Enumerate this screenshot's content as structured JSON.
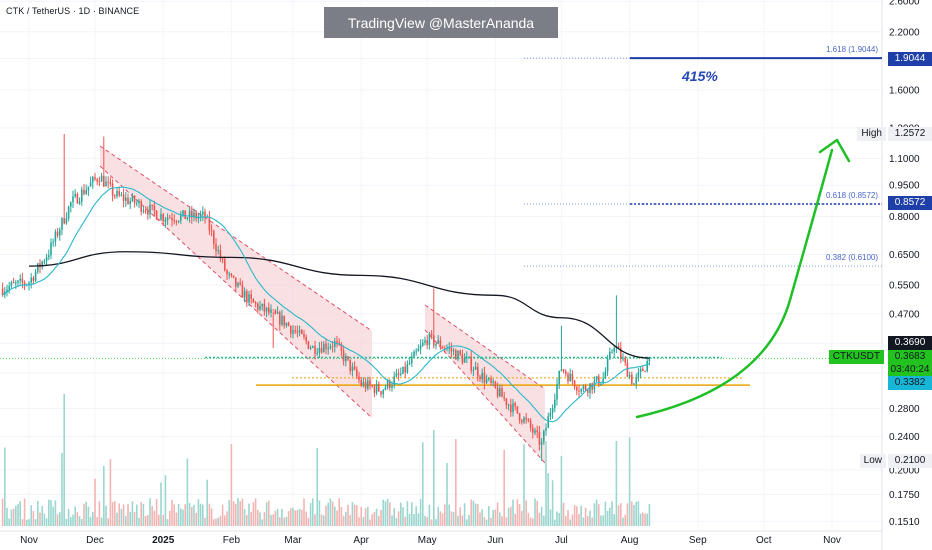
{
  "header": {
    "title": "CTK / TetherUS · 1D · BINANCE",
    "watermark": "TradingView @MasterAnanda"
  },
  "annotations": {
    "target_percent": "415%",
    "fib_1618": "1.618 (1.9044)",
    "fib_0618": "0.618 (0.8572)",
    "fib_0382": "0.382 (0.6100)",
    "high_label": "High",
    "low_label": "Low",
    "symbol_label": "CTKUSDT"
  },
  "price_tags": {
    "fib_1618": "1.9044",
    "high": "1.2572",
    "fib_0618": "0.8572",
    "ma200": "0.3690",
    "last": "0.3683",
    "countdown": "03:40:24",
    "ma20": "0.3382",
    "low": "0.2100"
  },
  "colors": {
    "up": "#26a69a",
    "down": "#ef5350",
    "channel_fill": "#f7d3d6",
    "channel_line": "#e0506a",
    "ma_long": "#131722",
    "ma_short": "#2ab8c9",
    "support": "#e8a300",
    "arrow": "#1fbf26",
    "fib": "#1f3fa8",
    "last_price": "#22c21f"
  },
  "chart_data": {
    "type": "candlestick",
    "symbol": "CTK / TetherUS",
    "interval": "1D",
    "exchange": "BINANCE",
    "y_scale": "log",
    "y_ticks": [
      "2.6000",
      "2.2000",
      "1.9000",
      "1.6000",
      "1.3000",
      "1.1000",
      "0.9500",
      "0.8000",
      "0.6500",
      "0.5500",
      "0.4700",
      "0.4000",
      "0.3400",
      "0.2800",
      "0.2400",
      "0.2000",
      "0.1750",
      "0.1510"
    ],
    "x_ticks": [
      "Nov",
      "Dec",
      "2025",
      "Feb",
      "Mar",
      "Apr",
      "May",
      "Jun",
      "Jul",
      "Aug",
      "Sep",
      "Oct",
      "Nov"
    ],
    "ohlc_anchors": [
      {
        "date": "2024-10-20",
        "close": 0.54
      },
      {
        "date": "2024-11-01",
        "close": 0.56
      },
      {
        "date": "2024-11-10",
        "close": 0.66
      },
      {
        "date": "2024-11-20",
        "close": 0.86
      },
      {
        "date": "2024-12-03",
        "close": 1.0
      },
      {
        "date": "2024-12-10",
        "close": 0.9
      },
      {
        "date": "2024-12-20",
        "close": 0.86
      },
      {
        "date": "2025-01-01",
        "close": 0.8
      },
      {
        "date": "2025-01-20",
        "close": 0.8
      },
      {
        "date": "2025-01-30",
        "close": 0.58
      },
      {
        "date": "2025-02-10",
        "close": 0.5
      },
      {
        "date": "2025-02-25",
        "close": 0.45
      },
      {
        "date": "2025-03-10",
        "close": 0.39
      },
      {
        "date": "2025-03-20",
        "close": 0.4
      },
      {
        "date": "2025-04-01",
        "close": 0.32
      },
      {
        "date": "2025-04-10",
        "close": 0.31
      },
      {
        "date": "2025-04-20",
        "close": 0.34
      },
      {
        "date": "2025-05-01",
        "close": 0.41
      },
      {
        "date": "2025-05-10",
        "close": 0.39
      },
      {
        "date": "2025-05-20",
        "close": 0.36
      },
      {
        "date": "2025-06-01",
        "close": 0.31
      },
      {
        "date": "2025-06-15",
        "close": 0.26
      },
      {
        "date": "2025-06-22",
        "close": 0.23
      },
      {
        "date": "2025-07-01",
        "close": 0.35
      },
      {
        "date": "2025-07-10",
        "close": 0.31
      },
      {
        "date": "2025-07-20",
        "close": 0.33
      },
      {
        "date": "2025-07-25",
        "close": 0.4
      },
      {
        "date": "2025-08-03",
        "close": 0.32
      },
      {
        "date": "2025-08-10",
        "close": 0.3683
      }
    ],
    "ma200_anchors": [
      {
        "date": "2024-11-01",
        "value": 0.61
      },
      {
        "date": "2024-12-15",
        "value": 0.66
      },
      {
        "date": "2025-02-01",
        "value": 0.64
      },
      {
        "date": "2025-04-01",
        "value": 0.58
      },
      {
        "date": "2025-06-01",
        "value": 0.52
      },
      {
        "date": "2025-07-01",
        "value": 0.46
      },
      {
        "date": "2025-08-10",
        "value": 0.369
      }
    ],
    "levels": {
      "fib_1618": 1.9044,
      "high": 1.2572,
      "fib_0618": 0.8572,
      "fib_0382": 0.61,
      "ma200": 0.369,
      "last": 0.3683,
      "ma20": 0.3382,
      "support": 0.318,
      "low": 0.21
    },
    "projection": "upward curved arrow from ~0.27 (Aug) to ~1.15 (Oct-Nov)",
    "volume": true
  }
}
